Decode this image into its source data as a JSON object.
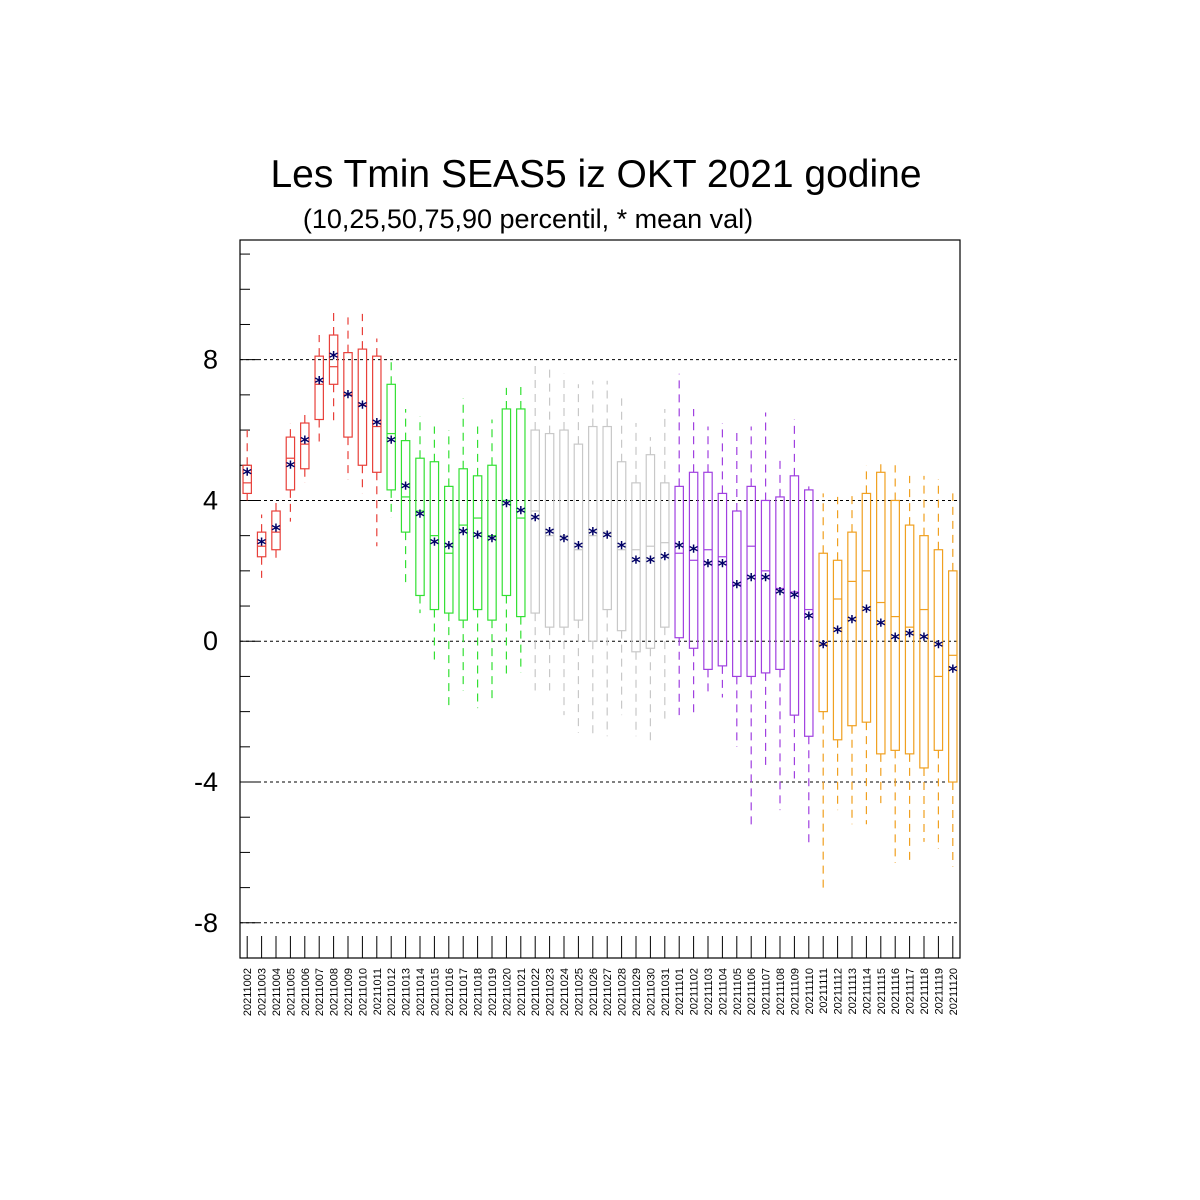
{
  "chart_data": {
    "type": "box",
    "title": "Les Tmin SEAS5 iz OKT 2021 godine",
    "subtitle": "(10,25,50,75,90 percentil, * mean val)",
    "ylim": [
      -9,
      11.4
    ],
    "yticks": [
      "8",
      "4",
      "0",
      "-4",
      "-8"
    ],
    "ytick_values": [
      8,
      4,
      0,
      -4,
      -8
    ],
    "grid": "dashed horizontal at major ticks",
    "colors": {
      "red": "#e8403a",
      "green": "#33e033",
      "grey": "#c8c8c8",
      "purple": "#a040e0",
      "orange": "#f0a020",
      "mean_marker": "#000066",
      "grid": "#000000",
      "frame": "#000000"
    },
    "categories": [
      "20211002",
      "20211003",
      "20211004",
      "20211005",
      "20211006",
      "20211007",
      "20211008",
      "20211009",
      "20211010",
      "20211011",
      "20211012",
      "20211013",
      "20211014",
      "20211015",
      "20211016",
      "20211017",
      "20211018",
      "20211019",
      "20211020",
      "20211021",
      "20211022",
      "20211023",
      "20211024",
      "20211025",
      "20211026",
      "20211027",
      "20211028",
      "20211029",
      "20211030",
      "20211031",
      "20211101",
      "20211102",
      "20211103",
      "20211104",
      "20211105",
      "20211106",
      "20211107",
      "20211108",
      "20211109",
      "20211110",
      "20211111",
      "20211112",
      "20211113",
      "20211114",
      "20211115",
      "20211116",
      "20211117",
      "20211118",
      "20211119",
      "20211120"
    ],
    "series_colors": [
      "red",
      "red",
      "red",
      "red",
      "red",
      "red",
      "red",
      "red",
      "red",
      "red",
      "green",
      "green",
      "green",
      "green",
      "green",
      "green",
      "green",
      "green",
      "green",
      "green",
      "grey",
      "grey",
      "grey",
      "grey",
      "grey",
      "grey",
      "grey",
      "grey",
      "grey",
      "grey",
      "purple",
      "purple",
      "purple",
      "purple",
      "purple",
      "purple",
      "purple",
      "purple",
      "purple",
      "purple",
      "orange",
      "orange",
      "orange",
      "orange",
      "orange",
      "orange",
      "orange",
      "orange",
      "orange",
      "orange"
    ],
    "p10": [
      4.0,
      1.8,
      2.2,
      3.4,
      4.5,
      5.6,
      6.2,
      4.6,
      4.2,
      2.7,
      3.5,
      1.6,
      0.8,
      -0.6,
      -1.9,
      -1.4,
      -1.9,
      -1.7,
      -1.0,
      -0.9,
      -1.4,
      -1.4,
      -2.1,
      -2.6,
      -2.7,
      -2.7,
      -2.1,
      -2.7,
      -2.9,
      -2.2,
      -2.1,
      -2.1,
      -1.5,
      -1.6,
      -3.0,
      -5.3,
      -3.6,
      -4.8,
      -3.9,
      -5.8,
      -7.0,
      -4.8,
      -5.2,
      -5.2,
      -4.6,
      -6.3,
      -6.3,
      -5.7,
      -5.9,
      -6.4
    ],
    "p25": [
      4.2,
      2.4,
      2.6,
      4.3,
      4.9,
      6.3,
      7.3,
      5.8,
      5.0,
      4.8,
      4.3,
      3.1,
      1.3,
      0.9,
      0.8,
      0.6,
      0.9,
      0.6,
      1.3,
      0.7,
      0.8,
      0.4,
      0.4,
      0.6,
      0.0,
      0.9,
      0.3,
      -0.3,
      -0.2,
      0.4,
      0.1,
      -0.2,
      -0.8,
      -0.7,
      -1.0,
      -1.0,
      -0.9,
      -0.8,
      -2.1,
      -2.7,
      -2.0,
      -2.8,
      -2.4,
      -2.3,
      -3.2,
      -3.1,
      -3.2,
      -3.6,
      -3.1,
      -4.0
    ],
    "p50": [
      4.5,
      2.7,
      3.1,
      5.2,
      5.6,
      7.3,
      7.8,
      7.0,
      6.7,
      6.1,
      5.9,
      4.1,
      3.7,
      3.0,
      2.5,
      3.3,
      3.5,
      3.0,
      4.0,
      3.5,
      3.7,
      3.0,
      3.0,
      2.6,
      3.0,
      3.1,
      2.6,
      2.6,
      2.7,
      2.8,
      2.5,
      2.3,
      2.6,
      2.4,
      1.6,
      2.7,
      2.0,
      1.5,
      1.4,
      0.9,
      -0.1,
      1.2,
      1.7,
      2.0,
      1.1,
      0.7,
      0.4,
      0.9,
      -1.0,
      -0.4
    ],
    "p75": [
      5.0,
      3.1,
      3.7,
      5.8,
      6.2,
      8.1,
      8.7,
      8.2,
      8.3,
      8.1,
      7.3,
      5.7,
      5.2,
      5.1,
      4.4,
      4.9,
      4.7,
      5.0,
      6.6,
      6.6,
      6.0,
      5.9,
      6.0,
      5.6,
      6.1,
      6.1,
      5.1,
      4.5,
      5.3,
      4.5,
      4.4,
      4.8,
      4.8,
      4.2,
      3.7,
      4.4,
      4.0,
      4.1,
      4.7,
      4.3,
      2.5,
      2.3,
      3.1,
      4.2,
      4.8,
      4.0,
      3.3,
      3.0,
      2.6,
      2.0
    ],
    "p90": [
      6.0,
      3.6,
      4.0,
      6.2,
      6.6,
      8.7,
      9.4,
      9.2,
      9.3,
      8.6,
      8.1,
      6.6,
      6.4,
      6.1,
      6.0,
      6.9,
      6.1,
      6.3,
      7.2,
      7.3,
      7.9,
      7.8,
      7.6,
      7.3,
      7.4,
      7.4,
      6.9,
      6.2,
      5.8,
      6.6,
      7.6,
      6.6,
      6.1,
      6.2,
      6.0,
      6.1,
      6.5,
      5.2,
      6.3,
      4.4,
      4.2,
      4.1,
      4.2,
      5.0,
      5.2,
      5.0,
      4.7,
      4.7,
      4.6,
      4.2
    ],
    "mean": [
      4.8,
      2.8,
      3.2,
      5.0,
      5.7,
      7.4,
      8.1,
      7.0,
      6.7,
      6.2,
      5.7,
      4.4,
      3.6,
      2.8,
      2.7,
      3.1,
      3.0,
      2.9,
      3.9,
      3.7,
      3.5,
      3.1,
      2.9,
      2.7,
      3.1,
      3.0,
      2.7,
      2.3,
      2.3,
      2.4,
      2.7,
      2.6,
      2.2,
      2.2,
      1.6,
      1.8,
      1.8,
      1.4,
      1.3,
      0.7,
      -0.1,
      0.3,
      0.6,
      0.9,
      0.5,
      0.1,
      0.2,
      0.1,
      -0.1,
      -0.8
    ],
    "mean_marker": "*"
  }
}
